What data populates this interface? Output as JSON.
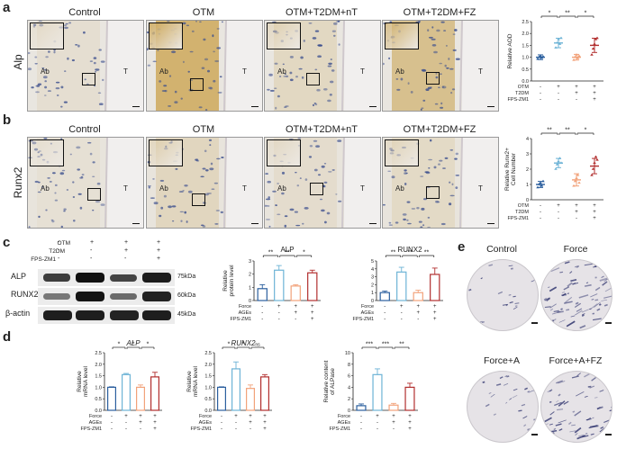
{
  "panels": {
    "a": "a",
    "b": "b",
    "c": "c",
    "d": "d",
    "e": "e"
  },
  "ihc": {
    "columns": [
      "Control",
      "OTM",
      "OTM+T2DM+nT",
      "OTM+T2DM+FZ"
    ],
    "rows": [
      "Alp",
      "Runx2"
    ],
    "tissue_labels": {
      "ab": "Ab",
      "t": "T"
    }
  },
  "colors": {
    "control": "#2b5f9e",
    "otm": "#6db3d6",
    "t2dm": "#f2a27a",
    "fz": "#b22f2f",
    "alp_stain": "#c9a04a",
    "nuclei": "#3c4f8e"
  },
  "group_table_ihc": {
    "row_labels": [
      "OTM",
      "T2DM",
      "FPS-ZM1"
    ],
    "values": [
      [
        "-",
        "+",
        "+",
        "+"
      ],
      [
        "-",
        "-",
        "+",
        "+"
      ],
      [
        "-",
        "-",
        "-",
        "+"
      ]
    ]
  },
  "group_table_vitro": {
    "row_labels": [
      "Force",
      "AGEs",
      "FPS-ZM1"
    ],
    "values": [
      [
        "-",
        "+",
        "+",
        "+"
      ],
      [
        "-",
        "-",
        "+",
        "+"
      ],
      [
        "-",
        "-",
        "-",
        "+"
      ]
    ]
  },
  "western": {
    "bands": [
      "ALP",
      "RUNX2",
      "β-actin"
    ],
    "sizes": [
      "75kDa",
      "60kDa",
      "45kDa"
    ],
    "header_labels": [
      "OTM",
      "T2DM",
      "FPS-ZM1"
    ]
  },
  "wells": {
    "labels": [
      "Control",
      "Force",
      "Force+A",
      "Force+A+FZ"
    ]
  },
  "sig": {
    "one": "*",
    "two": "**",
    "three": "***",
    "ns": "ns"
  },
  "chart_data": [
    {
      "id": "aod_alp",
      "type": "scatter",
      "ylabel": "Relative AOD",
      "ylim": [
        0,
        2.5
      ],
      "yticks": [
        "0.0",
        "0.5",
        "1.0",
        "1.5",
        "2.0",
        "2.5"
      ],
      "means": [
        1.0,
        1.6,
        1.0,
        1.5
      ],
      "errors": [
        0.1,
        0.2,
        0.12,
        0.3
      ],
      "points": [
        [
          0.92,
          1.0,
          1.05,
          0.97,
          1.02
        ],
        [
          1.4,
          1.6,
          1.75,
          1.55,
          1.8
        ],
        [
          0.88,
          1.0,
          1.1,
          0.95,
          1.05
        ],
        [
          1.1,
          1.35,
          1.55,
          1.75,
          1.8
        ]
      ],
      "sig": [
        "*",
        "**",
        "*"
      ]
    },
    {
      "id": "runx2_cells",
      "type": "scatter",
      "ylabel": "Relative Runx2+ Cell Number",
      "ylim": [
        0,
        4
      ],
      "yticks": [
        "0",
        "1",
        "2",
        "3",
        "4"
      ],
      "means": [
        1.0,
        2.4,
        1.3,
        2.2
      ],
      "errors": [
        0.2,
        0.3,
        0.4,
        0.5
      ],
      "points": [
        [
          0.8,
          1.0,
          1.1,
          0.9,
          1.2
        ],
        [
          2.0,
          2.3,
          2.5,
          2.7,
          2.4
        ],
        [
          0.9,
          1.2,
          1.4,
          1.6,
          1.1
        ],
        [
          1.6,
          2.0,
          2.4,
          2.8,
          2.6
        ]
      ],
      "sig": [
        "**",
        "**",
        "*"
      ]
    },
    {
      "id": "wb_alp",
      "type": "bar",
      "title": "ALP",
      "ylabel": "Relative protein level",
      "ylim": [
        0,
        3
      ],
      "yticks": [
        "0",
        "1",
        "2",
        "3"
      ],
      "values": [
        0.9,
        2.3,
        1.1,
        2.1
      ],
      "errors": [
        0.3,
        0.35,
        0.1,
        0.2
      ],
      "sig": [
        "**",
        "**",
        "*"
      ]
    },
    {
      "id": "wb_runx2",
      "type": "bar",
      "title": "RUNX2",
      "ylabel": "",
      "ylim": [
        0,
        5
      ],
      "yticks": [
        "0",
        "1",
        "2",
        "3",
        "4",
        "5"
      ],
      "values": [
        1.0,
        3.6,
        1.0,
        3.3
      ],
      "errors": [
        0.2,
        0.6,
        0.3,
        0.8
      ],
      "sig": [
        "**",
        "**",
        "**"
      ]
    },
    {
      "id": "mrna_alp",
      "type": "bar",
      "title": "ALP",
      "ylabel": "Relative mRNA level",
      "ylim": [
        0,
        2.5
      ],
      "yticks": [
        "0.0",
        "0.5",
        "1.0",
        "1.5",
        "2.0",
        "2.5"
      ],
      "values": [
        1.0,
        1.55,
        1.0,
        1.45
      ],
      "errors": [
        0.02,
        0.05,
        0.1,
        0.2
      ],
      "sig": [
        "*",
        "*",
        "*"
      ]
    },
    {
      "id": "mrna_runx2",
      "type": "bar",
      "title": "RUNX2",
      "ylabel": "Relative mRNA level",
      "ylim": [
        0,
        2.5
      ],
      "yticks": [
        "0.0",
        "0.5",
        "1.0",
        "1.5",
        "2.0",
        "2.5"
      ],
      "values": [
        1.0,
        1.8,
        0.95,
        1.45
      ],
      "errors": [
        0.02,
        0.3,
        0.15,
        0.1
      ],
      "sig": [
        "*",
        "*",
        "ns"
      ]
    },
    {
      "id": "alp_activity",
      "type": "bar",
      "ylabel": "Relative content of ALPase",
      "ylim": [
        0,
        10
      ],
      "yticks": [
        "0",
        "2",
        "4",
        "6",
        "8",
        "10"
      ],
      "values": [
        0.8,
        6.2,
        0.9,
        4.0
      ],
      "errors": [
        0.3,
        1.0,
        0.3,
        0.7
      ],
      "sig": [
        "***",
        "***",
        "**"
      ]
    }
  ]
}
